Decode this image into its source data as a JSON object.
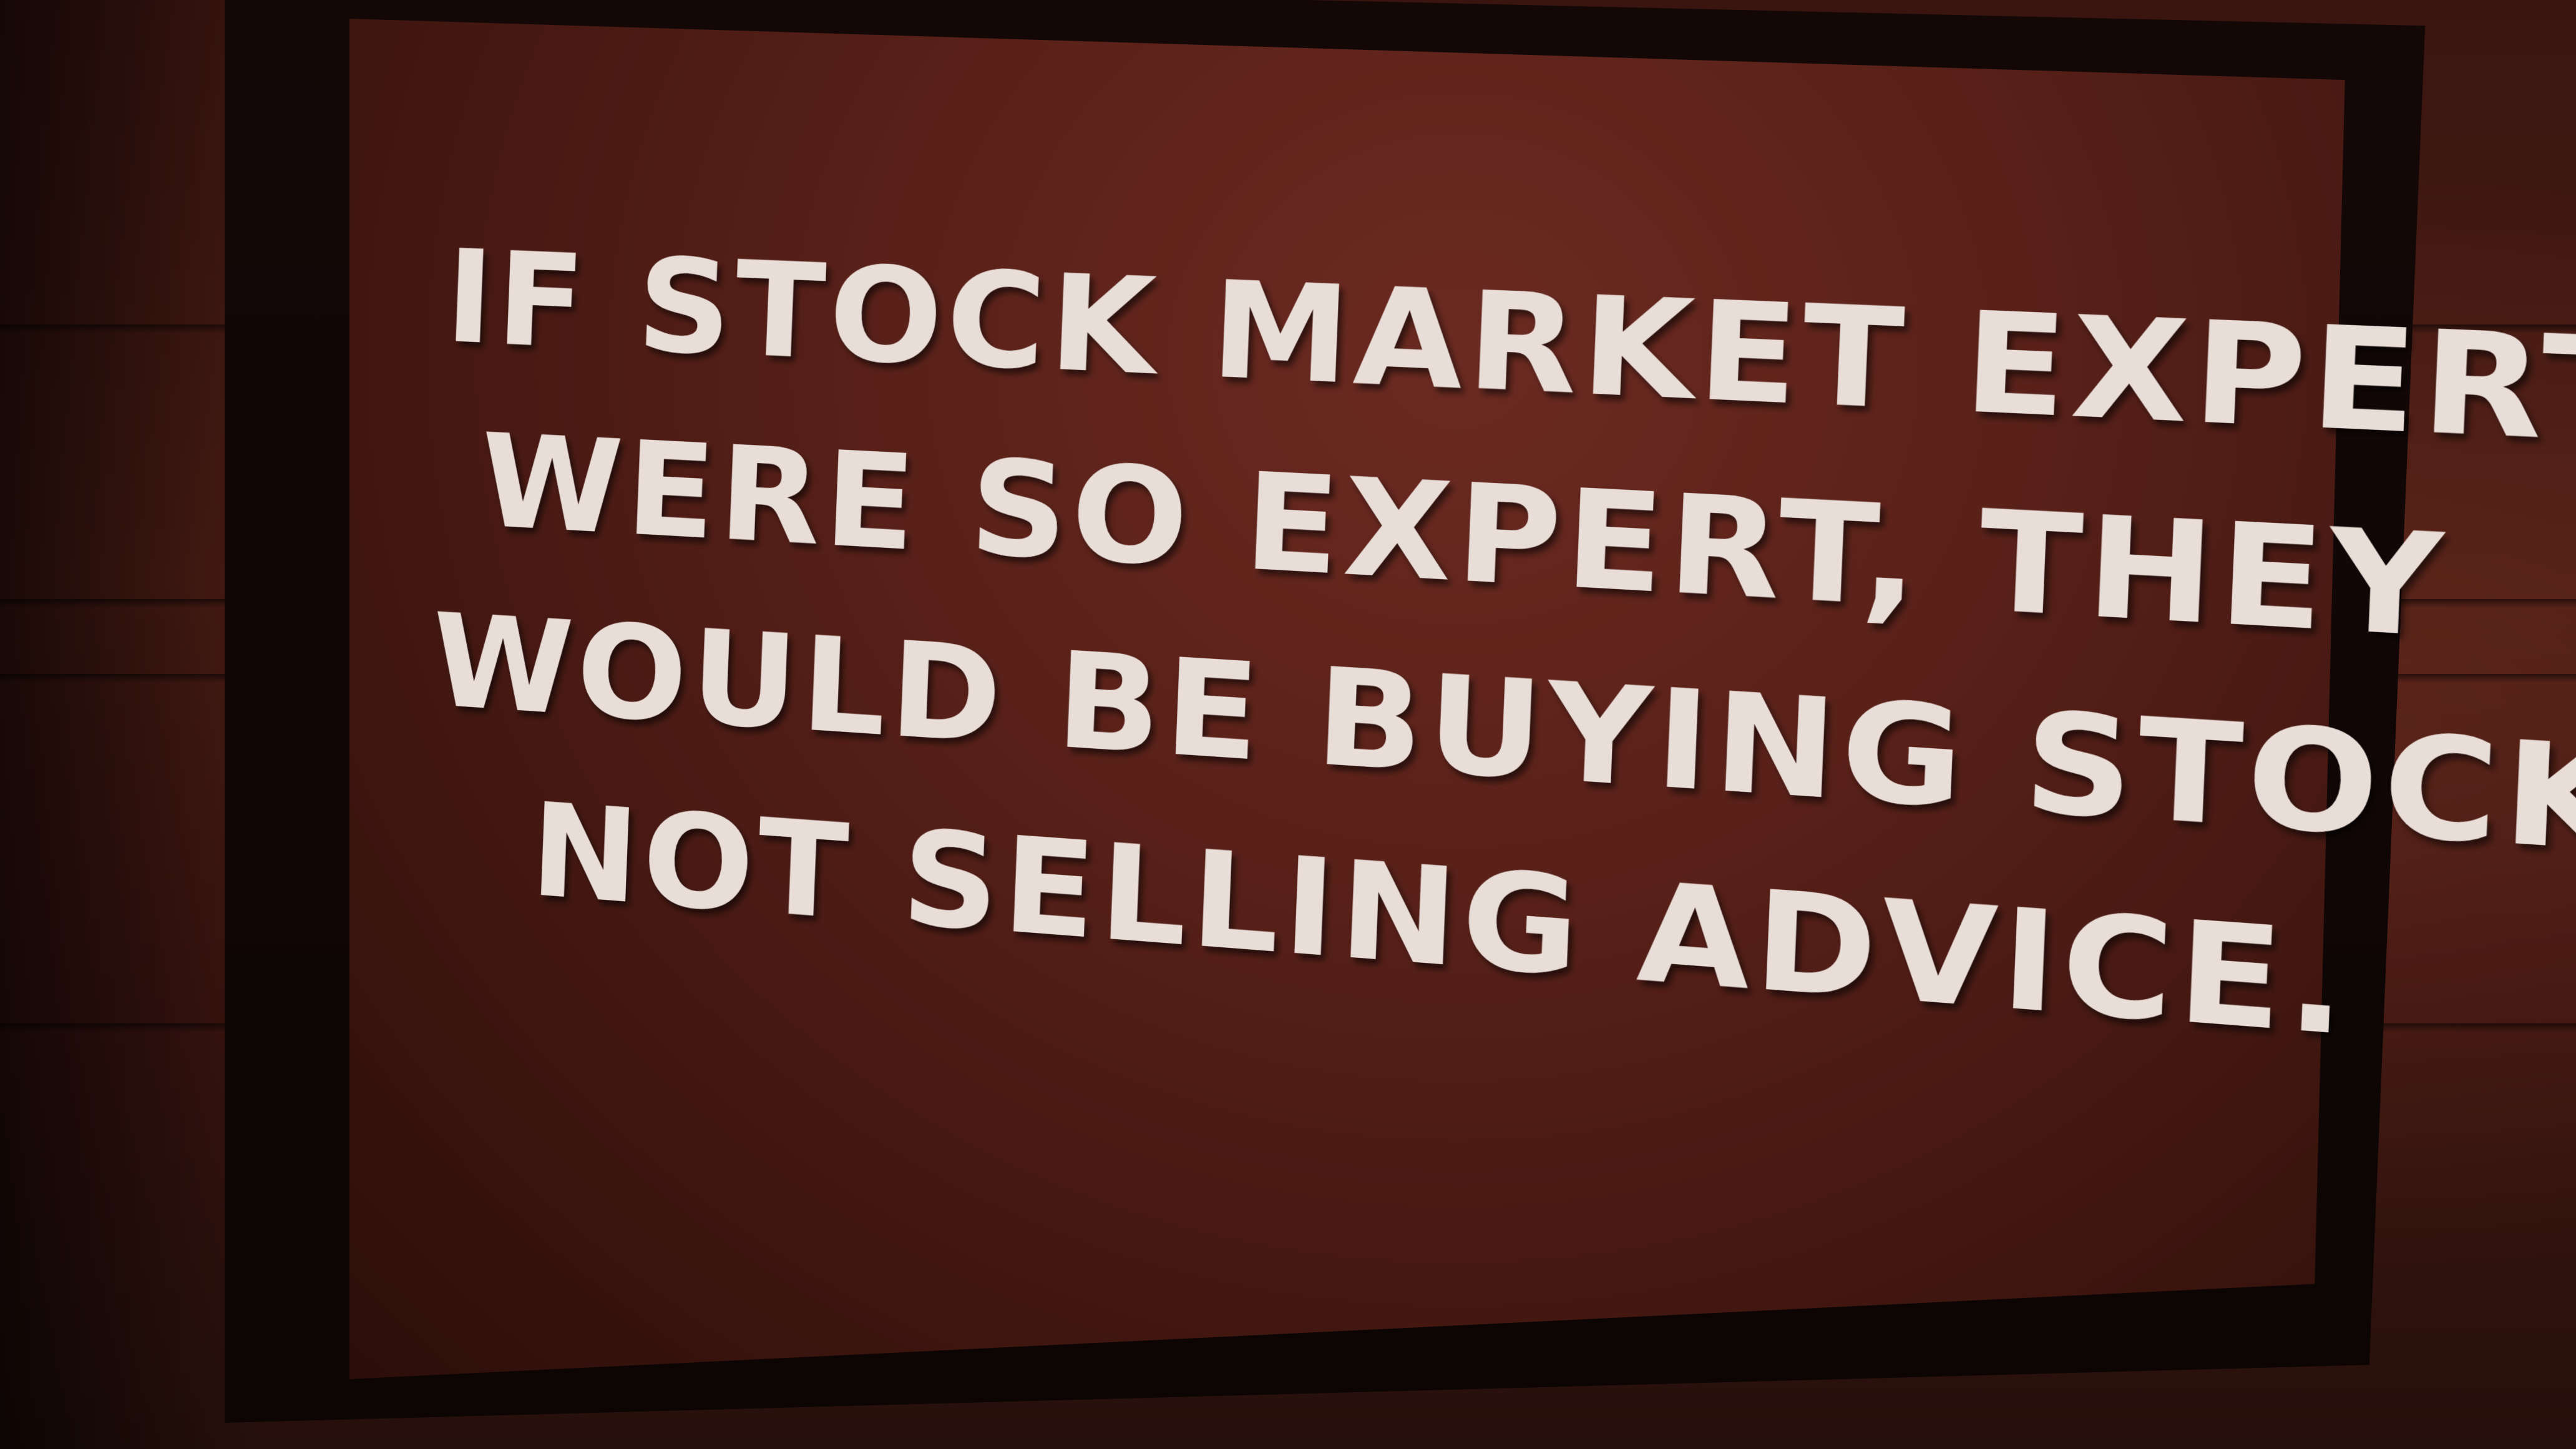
{
  "sign": {
    "lines": [
      "IF STOCK MARKET EXPERTS",
      "WERE SO EXPERT, THEY",
      "WOULD BE BUYING STOCK,",
      "NOT SELLING ADVICE."
    ]
  },
  "colors": {
    "wall": "#3a1510",
    "frame": "#0c0504",
    "board": "#5a2119",
    "lettering": "#e9ddd7"
  }
}
